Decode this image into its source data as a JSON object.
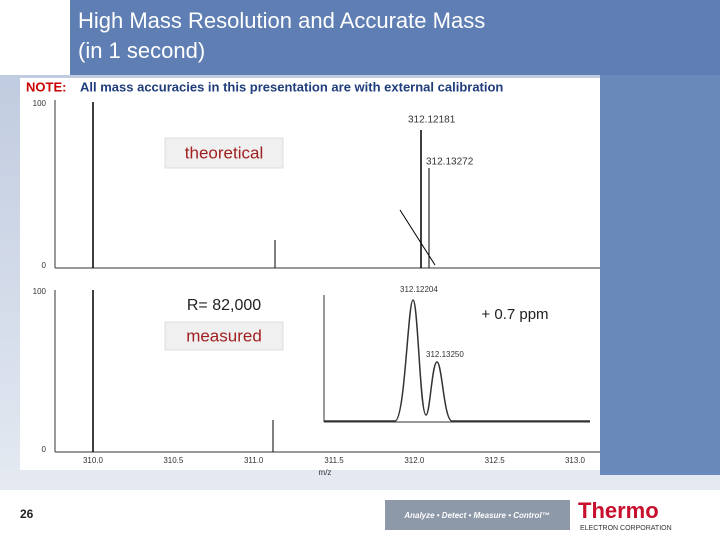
{
  "header": {
    "title_lines": [
      "High Mass Resolution and Accurate Mass",
      "(in 1 second)"
    ]
  },
  "note": {
    "label": "NOTE:",
    "text": "All mass accuracies in this presentation are with external calibration"
  },
  "top_spectrum": {
    "label": "theoretical",
    "peaks": [
      "312.12181",
      "312.13272"
    ],
    "y_top": "100",
    "y_bottom": "0"
  },
  "bottom_spectrum": {
    "resolution": "R= 82,000",
    "label": "measured",
    "peaks": [
      "312.12204",
      "312.13250"
    ],
    "accuracy": "+ 0.7 ppm",
    "y_top": "100",
    "y_bottom": "0"
  },
  "x_axis": {
    "ticks": [
      "310.0",
      "310.5",
      "311.0",
      "311.5",
      "312.0",
      "312.5",
      "313.0"
    ],
    "label": "m/z"
  },
  "footer": {
    "page": "26",
    "tagline": "Analyze • Detect • Measure • Control™",
    "brand": "Thermo",
    "subbrand": "ELECTRON CORPORATION"
  }
}
